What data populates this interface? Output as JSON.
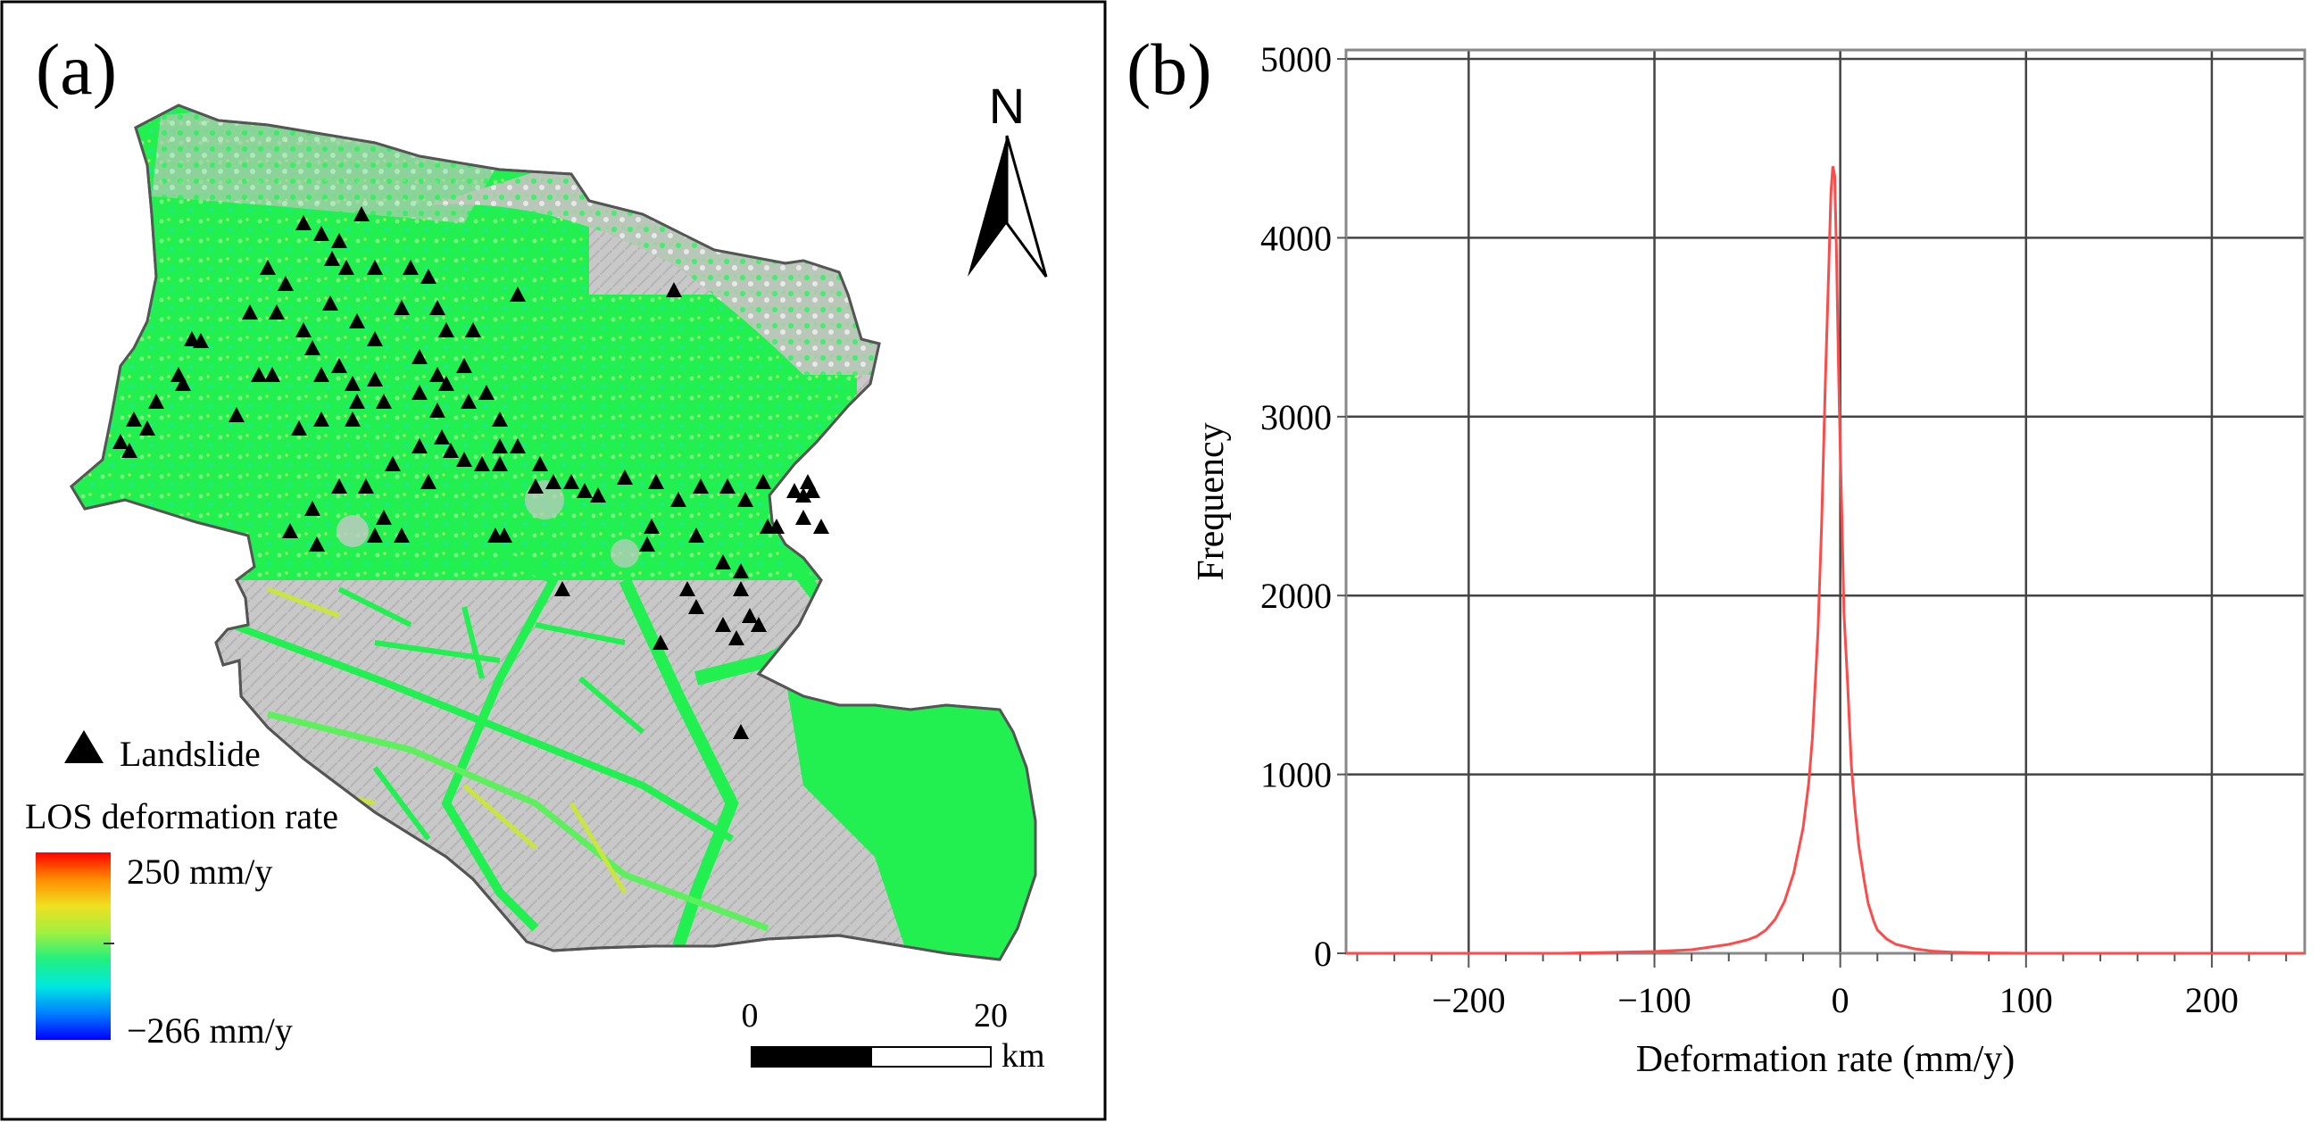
{
  "panel_a": {
    "label": "(a)",
    "north": "N",
    "legend": {
      "landslide_label": "Landslide",
      "title": "LOS deformation rate",
      "max_label": "250 mm/y",
      "min_label": "−266 mm/y",
      "colorbar_stops": [
        "#ff0000",
        "#ff8c00",
        "#f0e020",
        "#a0f040",
        "#20f080",
        "#00e8e0",
        "#0080ff",
        "#0000ff"
      ]
    },
    "scalebar": {
      "start": "0",
      "end": "20",
      "unit": "km"
    },
    "colors": {
      "terrain": "#c8c8c8",
      "deformation": "#22f050",
      "border": "#555555"
    }
  },
  "panel_b": {
    "label": "(b)",
    "chart_data": {
      "type": "line",
      "title": "",
      "xlabel": "Deformation rate (mm/y)",
      "ylabel": "Frequency",
      "xlim": [
        -266,
        250
      ],
      "ylim": [
        0,
        5050
      ],
      "xticks": [
        -200,
        -100,
        0,
        100,
        200
      ],
      "xtick_labels": [
        "−200",
        "−100",
        "0",
        "100",
        "200"
      ],
      "yticks": [
        0,
        1000,
        2000,
        3000,
        4000,
        5000
      ],
      "ytick_labels": [
        "0",
        "1000",
        "2000",
        "3000",
        "4000",
        "5000"
      ],
      "grid": true,
      "line_color": "#ff4a4a",
      "series": [
        {
          "x": [
            -266,
            -200,
            -150,
            -100,
            -80,
            -70,
            -60,
            -50,
            -45,
            -40,
            -35,
            -30,
            -25,
            -20,
            -17,
            -15,
            -12,
            -10,
            -8,
            -6,
            -5,
            -4,
            -3,
            -2,
            -1,
            0,
            1,
            2,
            4,
            6,
            8,
            10,
            13,
            15,
            18,
            20,
            25,
            30,
            40,
            50,
            60,
            80,
            100,
            150,
            200,
            250
          ],
          "y": [
            0,
            0,
            0,
            10,
            20,
            35,
            50,
            75,
            95,
            130,
            190,
            290,
            450,
            700,
            950,
            1200,
            1800,
            2400,
            3200,
            3900,
            4250,
            4400,
            4350,
            3900,
            3300,
            2800,
            2400,
            1900,
            1500,
            1050,
            800,
            600,
            400,
            280,
            180,
            130,
            80,
            50,
            25,
            12,
            6,
            2,
            0,
            0,
            0,
            0
          ]
        }
      ]
    }
  }
}
